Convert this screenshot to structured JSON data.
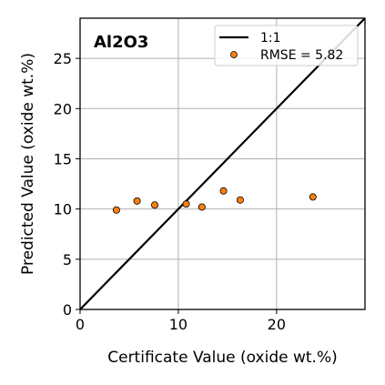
{
  "chart_data": {
    "type": "scatter",
    "title": "Al2O3",
    "xlabel": "Certificate Value (oxide wt.%)",
    "ylabel": "Predicted Value (oxide wt.%)",
    "xlim": [
      0,
      29
    ],
    "ylim": [
      0,
      29
    ],
    "x_ticks": [
      0,
      10,
      20
    ],
    "y_ticks": [
      0,
      5,
      10,
      15,
      20,
      25
    ],
    "grid": true,
    "legend_position": "top-right",
    "reference_line": {
      "label": "1:1",
      "points": [
        [
          0,
          0
        ],
        [
          29,
          29
        ]
      ],
      "color": "#000000"
    },
    "series": [
      {
        "name": "RMSE = 5.82",
        "color": "#ff7f0e",
        "edge_color": "#000000",
        "points": [
          {
            "x": 3.7,
            "y": 9.9
          },
          {
            "x": 5.8,
            "y": 10.8
          },
          {
            "x": 7.6,
            "y": 10.4
          },
          {
            "x": 10.8,
            "y": 10.5
          },
          {
            "x": 12.4,
            "y": 10.2
          },
          {
            "x": 14.6,
            "y": 11.8
          },
          {
            "x": 16.3,
            "y": 10.9
          },
          {
            "x": 23.7,
            "y": 11.2
          }
        ]
      }
    ]
  }
}
